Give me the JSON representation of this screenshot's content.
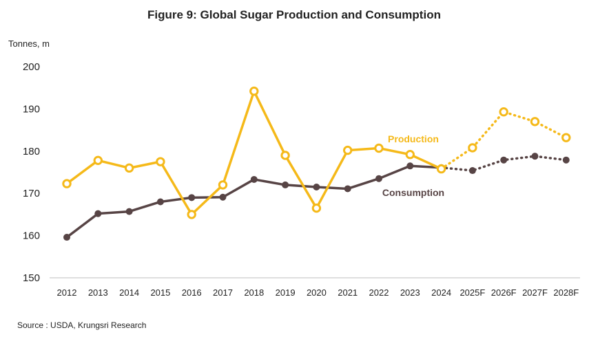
{
  "source": "Source : USDA, Krungsri Research",
  "colors": {
    "production": "#f5b919",
    "consumption": "#574445",
    "axis": "#222222"
  },
  "chart_data": {
    "type": "line",
    "title": "Figure 9: Global Sugar Production and Consumption",
    "ylabel": "Tonnes, m",
    "ylim": [
      150,
      200
    ],
    "yticks": [
      150,
      160,
      170,
      180,
      190,
      200
    ],
    "categories": [
      "2012",
      "2013",
      "2014",
      "2015",
      "2016",
      "2017",
      "2018",
      "2019",
      "2020",
      "2021",
      "2022",
      "2023",
      "2024",
      "2025F",
      "2026F",
      "2027F",
      "2028F"
    ],
    "forecast_from_index": 12,
    "grid": false,
    "series": [
      {
        "name": "Production",
        "values": [
          172.3,
          177.8,
          176.0,
          177.5,
          165.0,
          172.0,
          194.2,
          179.0,
          166.5,
          180.2,
          180.7,
          179.2,
          175.8,
          180.8,
          189.3,
          187.0,
          183.2
        ]
      },
      {
        "name": "Consumption",
        "values": [
          159.6,
          165.2,
          165.7,
          168.0,
          169.0,
          169.1,
          173.3,
          172.0,
          171.5,
          171.1,
          173.5,
          176.5,
          176.1,
          175.4,
          177.9,
          178.8,
          177.9
        ]
      }
    ]
  }
}
